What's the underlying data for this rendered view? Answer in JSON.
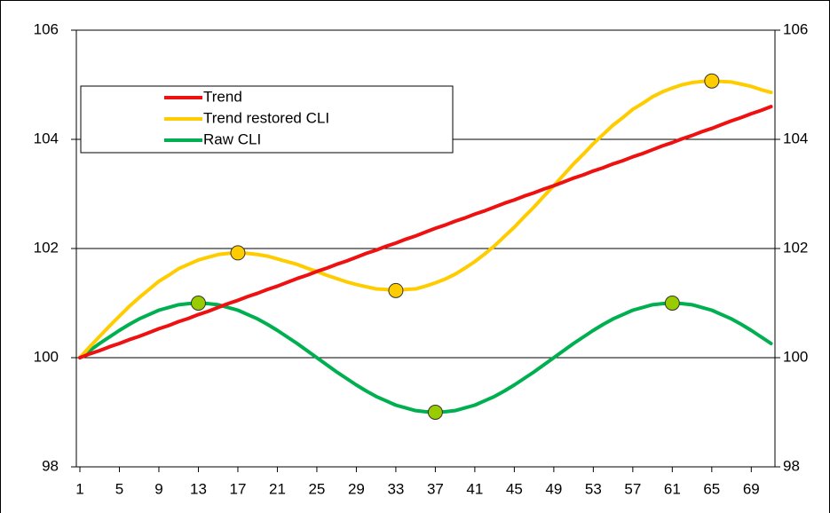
{
  "chart_data": {
    "type": "line",
    "x": [
      1,
      2,
      3,
      4,
      5,
      6,
      7,
      8,
      9,
      10,
      11,
      12,
      13,
      14,
      15,
      16,
      17,
      18,
      19,
      20,
      21,
      22,
      23,
      24,
      25,
      26,
      27,
      28,
      29,
      30,
      31,
      32,
      33,
      34,
      35,
      36,
      37,
      38,
      39,
      40,
      41,
      42,
      43,
      44,
      45,
      46,
      47,
      48,
      49,
      50,
      51,
      52,
      53,
      54,
      55,
      56,
      57,
      58,
      59,
      60,
      61,
      62,
      63,
      64,
      65,
      66,
      67,
      68,
      69,
      70,
      71
    ],
    "xlim": [
      0.64,
      71.4
    ],
    "xticks": [
      1,
      5,
      9,
      13,
      17,
      21,
      25,
      29,
      33,
      37,
      41,
      45,
      49,
      53,
      57,
      61,
      65,
      69
    ],
    "ylim": [
      98,
      106
    ],
    "yticks": [
      98,
      100,
      102,
      104,
      106
    ],
    "y2lim": [
      98,
      106
    ],
    "y2ticks": [
      98,
      100,
      102,
      104,
      106
    ],
    "grid": true,
    "legend": "upper left",
    "series": [
      {
        "name": "Trend",
        "color": "#ee1111",
        "values": [
          100,
          100.07,
          100.13,
          100.2,
          100.26,
          100.33,
          100.39,
          100.46,
          100.53,
          100.59,
          100.66,
          100.72,
          100.79,
          100.85,
          100.92,
          100.99,
          101.05,
          101.12,
          101.18,
          101.25,
          101.31,
          101.38,
          101.45,
          101.51,
          101.58,
          101.64,
          101.71,
          101.77,
          101.84,
          101.91,
          101.97,
          102.04,
          102.1,
          102.17,
          102.23,
          102.3,
          102.37,
          102.43,
          102.5,
          102.56,
          102.63,
          102.69,
          102.76,
          102.83,
          102.89,
          102.96,
          103.02,
          103.09,
          103.15,
          103.22,
          103.29,
          103.35,
          103.42,
          103.48,
          103.55,
          103.61,
          103.68,
          103.74,
          103.81,
          103.88,
          103.94,
          104.01,
          104.07,
          104.14,
          104.2,
          104.27,
          104.34,
          104.4,
          104.47,
          104.53,
          104.6
        ]
      },
      {
        "name": "Trend restored CLI",
        "color": "#ffcc00",
        "marker_color": "#ffcc00",
        "markers_x": [
          17,
          33,
          65
        ],
        "values": [
          100,
          100.2,
          100.39,
          100.58,
          100.76,
          100.94,
          101.1,
          101.25,
          101.4,
          101.51,
          101.63,
          101.71,
          101.79,
          101.84,
          101.89,
          101.91,
          101.92,
          101.91,
          101.89,
          101.86,
          101.81,
          101.76,
          101.71,
          101.64,
          101.58,
          101.51,
          101.45,
          101.39,
          101.34,
          101.3,
          101.26,
          101.25,
          101.23,
          101.25,
          101.26,
          101.31,
          101.37,
          101.44,
          101.53,
          101.64,
          101.76,
          101.9,
          102.05,
          102.22,
          102.39,
          102.58,
          102.76,
          102.96,
          103.15,
          103.35,
          103.55,
          103.73,
          103.92,
          104.09,
          104.26,
          104.4,
          104.55,
          104.66,
          104.78,
          104.87,
          104.94,
          105,
          105.04,
          105.06,
          105.07,
          105.06,
          105.05,
          105.01,
          104.97,
          104.91,
          104.86
        ]
      },
      {
        "name": "Raw CLI",
        "color": "#00b050",
        "marker_color": "#99cc00",
        "markers_x": [
          13,
          37,
          61
        ],
        "values": [
          100,
          100.13,
          100.26,
          100.38,
          100.5,
          100.61,
          100.71,
          100.79,
          100.87,
          100.92,
          100.97,
          100.99,
          101,
          100.99,
          100.97,
          100.92,
          100.87,
          100.79,
          100.71,
          100.61,
          100.5,
          100.38,
          100.26,
          100.13,
          100,
          99.87,
          99.74,
          99.62,
          99.5,
          99.39,
          99.29,
          99.21,
          99.13,
          99.08,
          99.03,
          99.01,
          99,
          99.01,
          99.03,
          99.08,
          99.13,
          99.21,
          99.29,
          99.39,
          99.5,
          99.62,
          99.74,
          99.87,
          100,
          100.13,
          100.26,
          100.38,
          100.5,
          100.61,
          100.71,
          100.79,
          100.87,
          100.92,
          100.97,
          100.99,
          101,
          100.99,
          100.97,
          100.92,
          100.87,
          100.79,
          100.71,
          100.61,
          100.5,
          100.38,
          100.26
        ]
      }
    ]
  }
}
